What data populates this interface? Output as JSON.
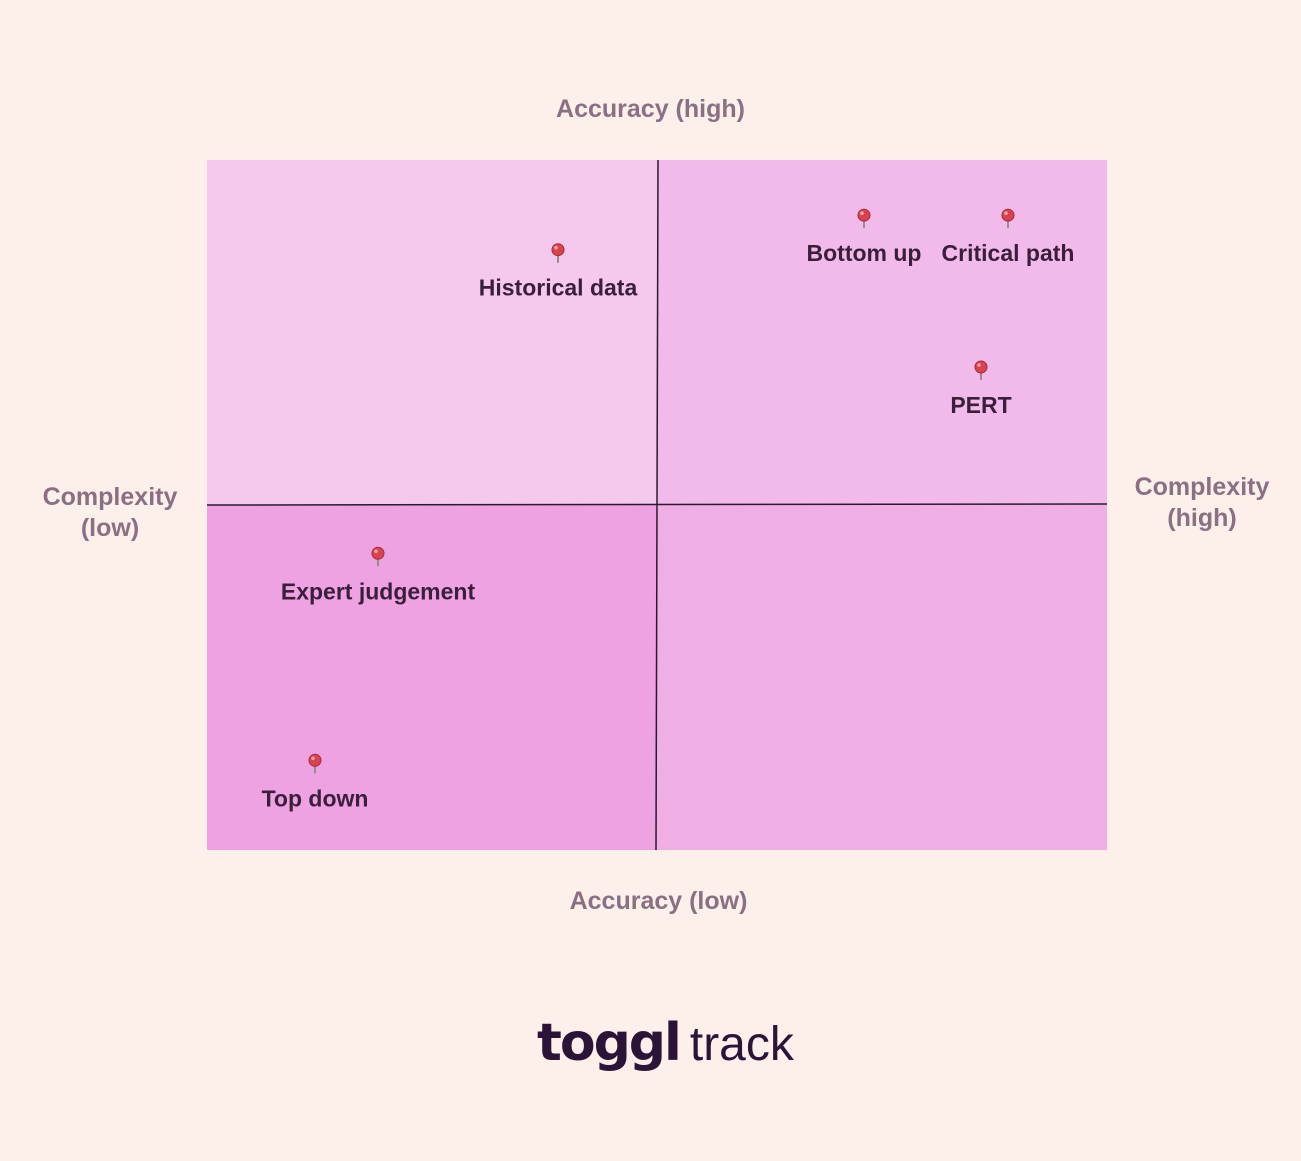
{
  "chart_data": {
    "type": "scatter",
    "title": "",
    "axes": {
      "top": "Accuracy (high)",
      "bottom": "Accuracy (low)",
      "left": "Complexity\n(low)",
      "right": "Complexity\n(high)"
    },
    "xlim": [
      0,
      100
    ],
    "ylim": [
      0,
      100
    ],
    "grid": false,
    "quadrant_colors": {
      "top_left": "#f5c9ee",
      "top_right": "#f2baea",
      "bottom_left": "#eea2e2",
      "bottom_right": "#efaee4"
    },
    "divider_color": "#2a1a2e",
    "pin_color": "#d9434e",
    "points": [
      {
        "label": "Historical data",
        "x": 39,
        "y": 87
      },
      {
        "label": "Bottom up",
        "x": 73,
        "y": 92
      },
      {
        "label": "Critical path",
        "x": 89,
        "y": 92
      },
      {
        "label": "PERT",
        "x": 86,
        "y": 70
      },
      {
        "label": "Expert judgement",
        "x": 19,
        "y": 43
      },
      {
        "label": "Top down",
        "x": 12,
        "y": 13
      }
    ]
  },
  "brand": {
    "bold": "toggl",
    "light": "track"
  }
}
